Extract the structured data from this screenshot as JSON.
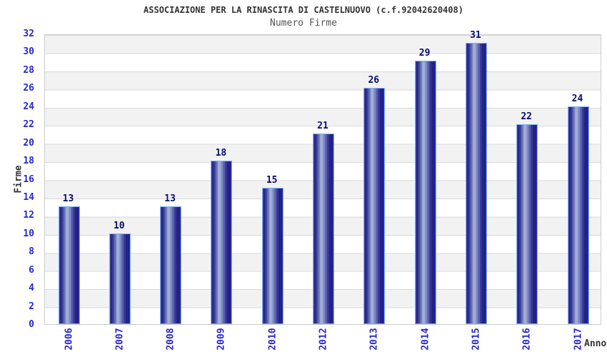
{
  "header": {
    "title": "ASSOCIAZIONE PER LA RINASCITA DI CASTELNUOVO (c.f.92042620408)",
    "subtitle": "Numero Firme"
  },
  "chart_data": {
    "type": "bar",
    "title": "ASSOCIAZIONE PER LA RINASCITA DI CASTELNUOVO (c.f.92042620408)",
    "subtitle": "Numero Firme",
    "xlabel": "Anno",
    "ylabel": "Firme",
    "categories": [
      "2006",
      "2007",
      "2008",
      "2009",
      "2010",
      "2012",
      "2013",
      "2014",
      "2015",
      "2016",
      "2017"
    ],
    "values": [
      13,
      10,
      13,
      18,
      15,
      21,
      26,
      29,
      31,
      22,
      24
    ],
    "yticks": [
      0,
      2,
      4,
      6,
      8,
      10,
      12,
      14,
      16,
      18,
      20,
      22,
      24,
      26,
      28,
      30,
      32
    ],
    "ylim": [
      0,
      32
    ],
    "grid": "horizontal-alternating-bands",
    "legend_position": "none",
    "colors": {
      "bar_dark": "#1b1b80",
      "bar_highlight": "#a9b2db",
      "bar_border": "#7fb2f0",
      "tick_label": "#2727cd",
      "value_label": "#0a0a6e",
      "title": "#333333",
      "band_gray": "#f2f2f2",
      "band_white": "#ffffff",
      "plot_border": "#cccccc"
    }
  }
}
